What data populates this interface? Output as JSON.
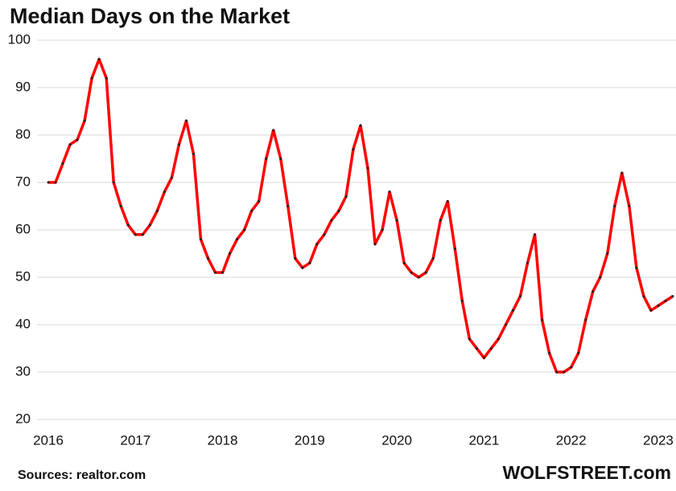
{
  "chart_data": {
    "type": "line",
    "title": "Median Days on the Market",
    "categories": [
      "2016",
      null,
      null,
      null,
      null,
      null,
      null,
      null,
      null,
      null,
      null,
      null,
      "2017",
      null,
      null,
      null,
      null,
      null,
      null,
      null,
      null,
      null,
      null,
      null,
      "2018",
      null,
      null,
      null,
      null,
      null,
      null,
      null,
      null,
      null,
      null,
      null,
      "2019",
      null,
      null,
      null,
      null,
      null,
      null,
      null,
      null,
      null,
      null,
      null,
      "2020",
      null,
      null,
      null,
      null,
      null,
      null,
      null,
      null,
      null,
      null,
      null,
      "2021",
      null,
      null,
      null,
      null,
      null,
      null,
      null,
      null,
      null,
      null,
      null,
      "2022",
      null,
      null,
      null,
      null,
      null,
      null,
      null,
      null,
      null,
      null,
      null,
      "2023",
      null,
      null
    ],
    "series": [
      {
        "name": "Median Days on the Market",
        "color": "#ff0000",
        "values": [
          70,
          70,
          74,
          78,
          79,
          83,
          92,
          96,
          92,
          70,
          65,
          61,
          59,
          59,
          61,
          64,
          68,
          71,
          78,
          83,
          76,
          58,
          54,
          51,
          51,
          55,
          58,
          60,
          64,
          66,
          75,
          81,
          75,
          65,
          54,
          52,
          53,
          57,
          59,
          62,
          64,
          67,
          77,
          82,
          73,
          57,
          60,
          68,
          62,
          53,
          51,
          50,
          51,
          54,
          62,
          66,
          56,
          45,
          37,
          35,
          33,
          35,
          37,
          40,
          43,
          46,
          53,
          59,
          41,
          34,
          30,
          30,
          31,
          34,
          41,
          47,
          50,
          55,
          65,
          72,
          65,
          52,
          46,
          43,
          44,
          45,
          46
        ]
      }
    ],
    "ylim": [
      20,
      100
    ],
    "yticks": [
      20,
      30,
      40,
      50,
      60,
      70,
      80,
      90,
      100
    ],
    "grid": true,
    "source": "Sources: realtor.com",
    "brand": "WOLFSTREET.com"
  }
}
